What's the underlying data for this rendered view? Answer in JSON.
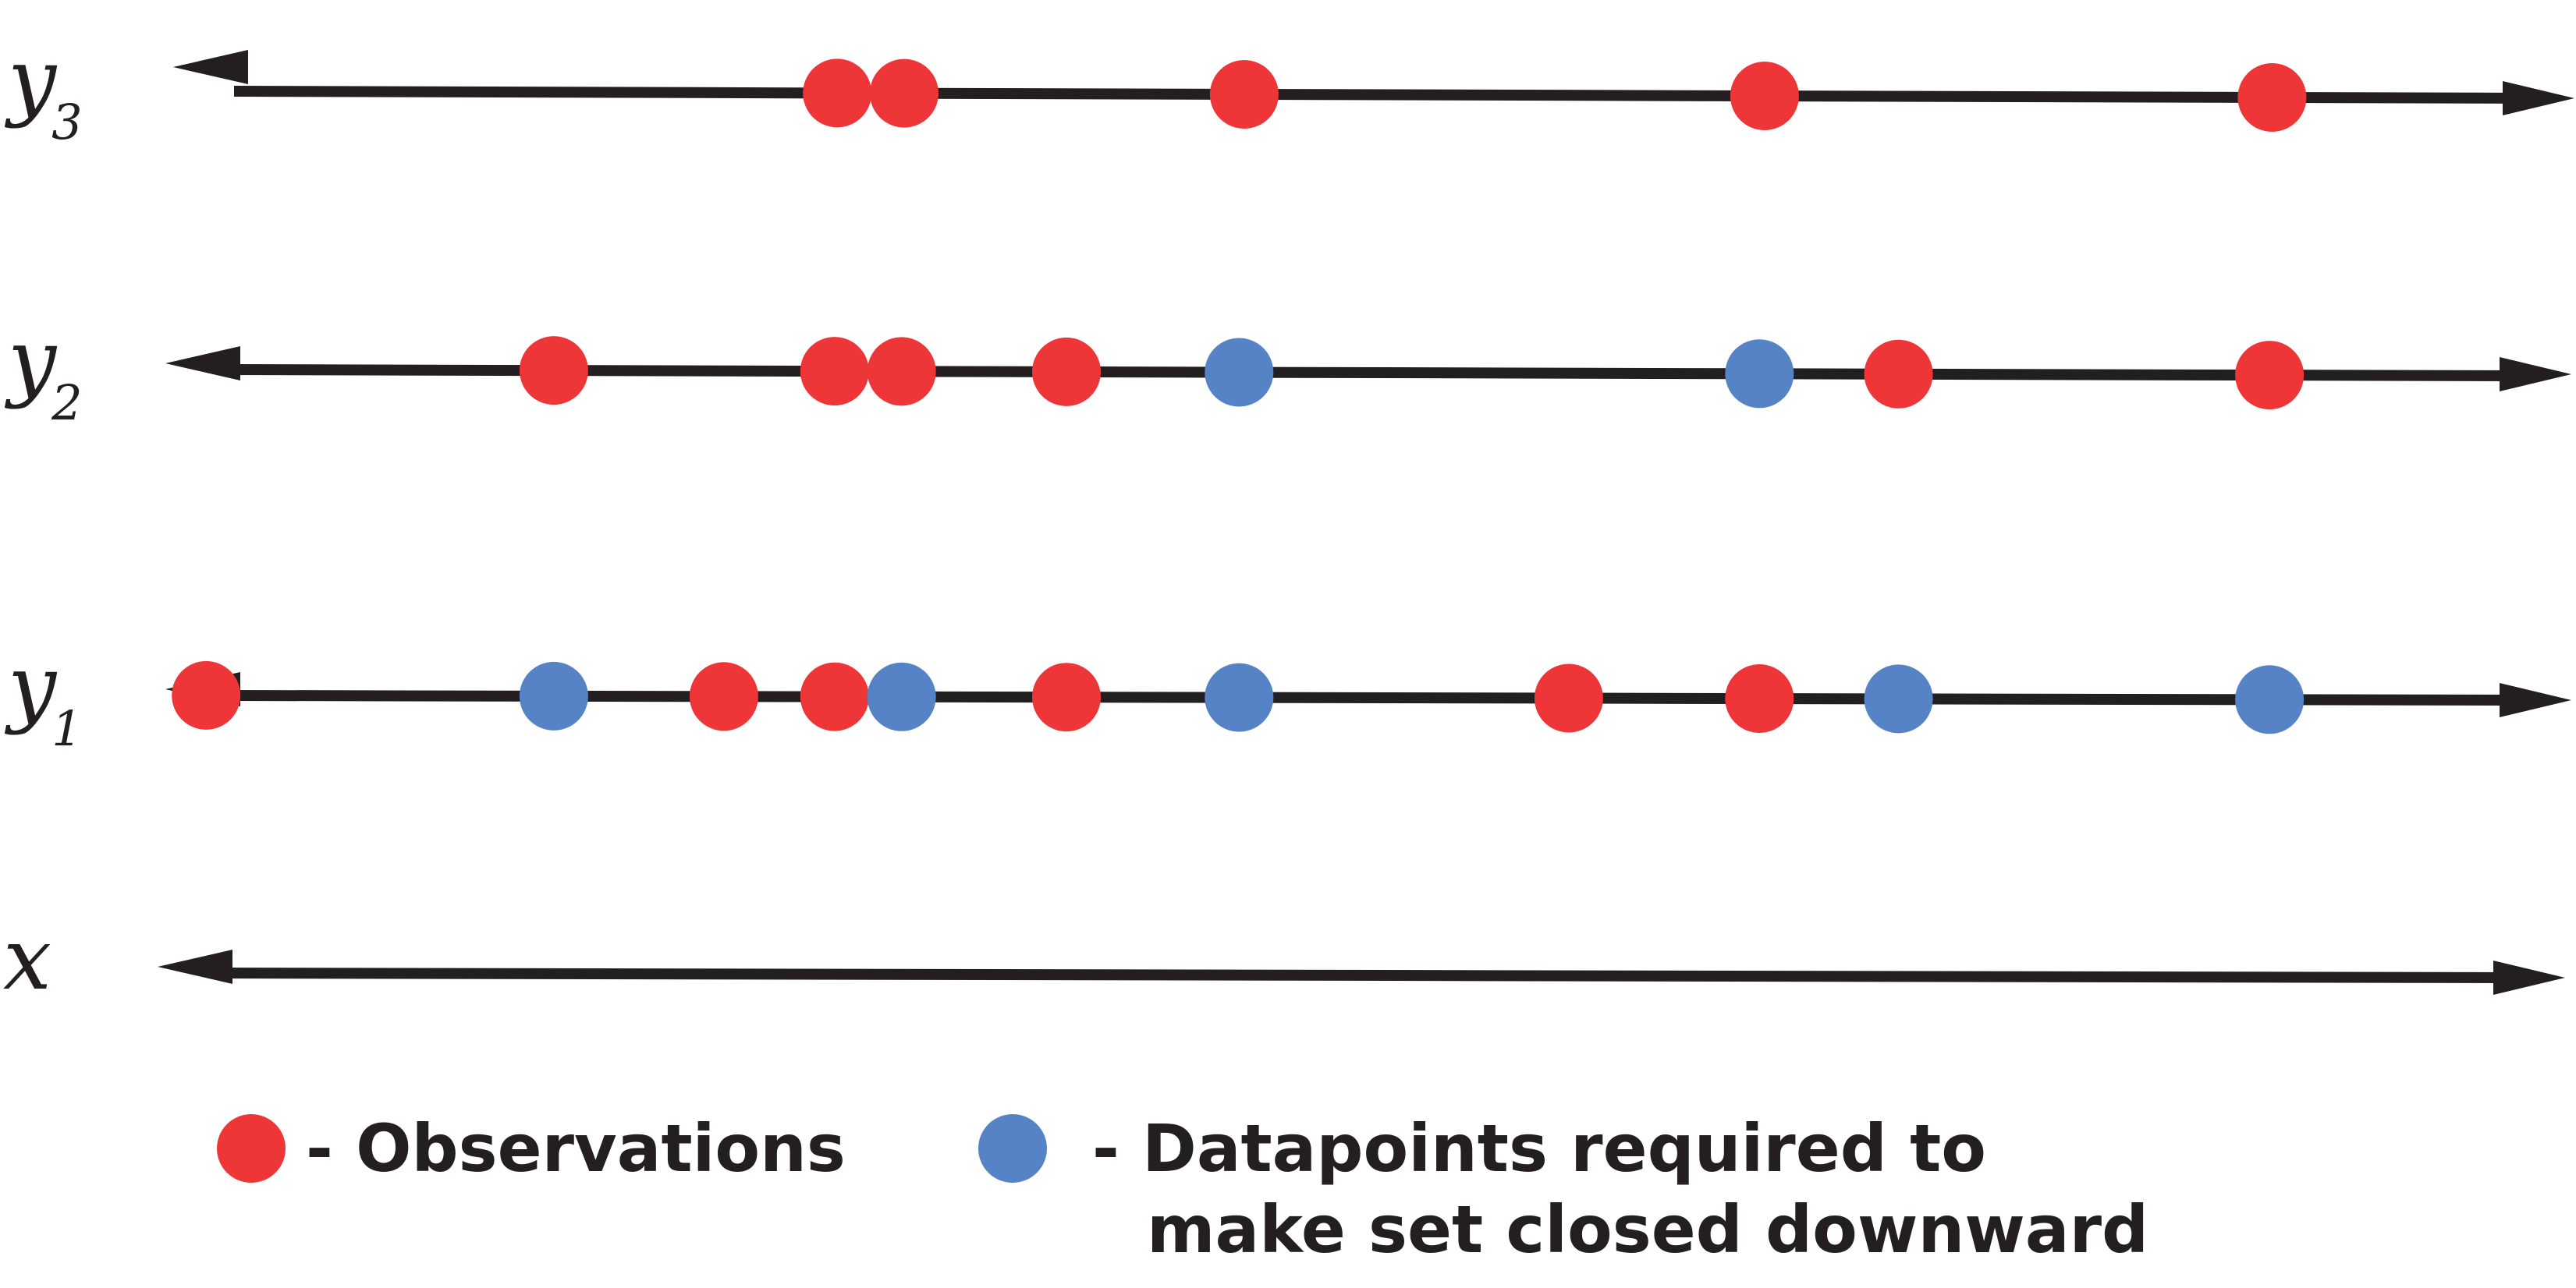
{
  "colors": {
    "observation": "#ee3537",
    "required": "#5583c6",
    "axis": "#231f20"
  },
  "axes": [
    {
      "id": "y3",
      "label_base": "y",
      "label_sub": "3",
      "points": [
        {
          "x": 0.325,
          "kind": "observation"
        },
        {
          "x": 0.351,
          "kind": "observation"
        },
        {
          "x": 0.483,
          "kind": "observation"
        },
        {
          "x": 0.685,
          "kind": "observation"
        },
        {
          "x": 0.882,
          "kind": "observation"
        }
      ]
    },
    {
      "id": "y2",
      "label_base": "y",
      "label_sub": "2",
      "points": [
        {
          "x": 0.215,
          "kind": "observation"
        },
        {
          "x": 0.324,
          "kind": "observation"
        },
        {
          "x": 0.35,
          "kind": "observation"
        },
        {
          "x": 0.414,
          "kind": "observation"
        },
        {
          "x": 0.481,
          "kind": "required"
        },
        {
          "x": 0.683,
          "kind": "required"
        },
        {
          "x": 0.737,
          "kind": "observation"
        },
        {
          "x": 0.881,
          "kind": "observation"
        }
      ]
    },
    {
      "id": "y1",
      "label_base": "y",
      "label_sub": "1",
      "points": [
        {
          "x": 0.08,
          "kind": "observation"
        },
        {
          "x": 0.215,
          "kind": "required"
        },
        {
          "x": 0.281,
          "kind": "observation"
        },
        {
          "x": 0.324,
          "kind": "observation"
        },
        {
          "x": 0.35,
          "kind": "required"
        },
        {
          "x": 0.414,
          "kind": "observation"
        },
        {
          "x": 0.481,
          "kind": "required"
        },
        {
          "x": 0.609,
          "kind": "observation"
        },
        {
          "x": 0.683,
          "kind": "observation"
        },
        {
          "x": 0.737,
          "kind": "required"
        },
        {
          "x": 0.881,
          "kind": "required"
        }
      ]
    },
    {
      "id": "x",
      "label_base": "x",
      "label_sub": "",
      "points": []
    }
  ],
  "legend": {
    "observation_label": "- Observations",
    "required_label_line1": "- Datapoints required to",
    "required_label_line2": "make set closed downward"
  }
}
